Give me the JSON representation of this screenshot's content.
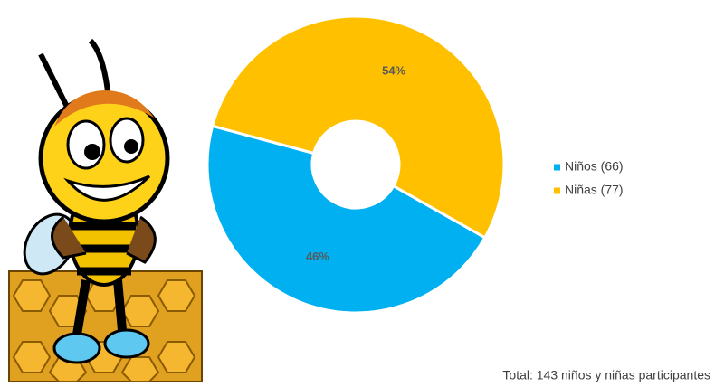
{
  "chart_data": {
    "type": "donut",
    "categories": [
      "Niños (66)",
      "Niñas (77)"
    ],
    "values": [
      46,
      54
    ],
    "value_labels": [
      "46%",
      "54%"
    ],
    "colors": [
      "#00b0f0",
      "#ffc000"
    ],
    "legend": "right",
    "footnote": "Total: 143 niños y niñas participantes"
  }
}
